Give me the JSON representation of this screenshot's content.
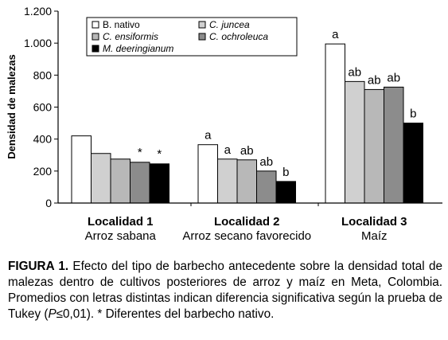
{
  "chart_data": {
    "type": "bar",
    "ylabel": "Densidad de malezas",
    "ylim": [
      0,
      1200
    ],
    "yticks": [
      {
        "value": 0,
        "label": "0"
      },
      {
        "value": 200,
        "label": "200"
      },
      {
        "value": 400,
        "label": "400"
      },
      {
        "value": 600,
        "label": "600"
      },
      {
        "value": 800,
        "label": "800"
      },
      {
        "value": 1000,
        "label": "1.000"
      },
      {
        "value": 1200,
        "label": "1.200"
      }
    ],
    "groups": [
      {
        "name": "Localidad 1",
        "subtitle": "Arroz sabana"
      },
      {
        "name": "Localidad 2",
        "subtitle": "Arroz secano favorecido"
      },
      {
        "name": "Localidad 3",
        "subtitle": "Maíz"
      }
    ],
    "series": [
      {
        "name": "B. nativo",
        "color": "#ffffff",
        "values": [
          420,
          365,
          995
        ],
        "labels": [
          "",
          "a",
          "a"
        ]
      },
      {
        "name": "C. juncea",
        "color": "#d0d0d0",
        "values": [
          310,
          275,
          760
        ],
        "labels": [
          "",
          "a",
          "ab"
        ]
      },
      {
        "name": "C. ensiformis",
        "color": "#b8b8b8",
        "values": [
          275,
          270,
          710
        ],
        "labels": [
          "",
          "ab",
          "ab"
        ]
      },
      {
        "name": "C. ochroleuca",
        "color": "#8c8c8c",
        "values": [
          255,
          200,
          725
        ],
        "labels": [
          "*",
          "ab",
          "ab"
        ]
      },
      {
        "name": "M. deeringianum",
        "color": "#000000",
        "values": [
          245,
          135,
          500
        ],
        "labels": [
          "*",
          "b",
          "b"
        ]
      }
    ],
    "legend_position": "top-left",
    "legend_italic_genus": [
      "B.",
      "C.",
      "C.",
      "C.",
      "M."
    ]
  },
  "caption": {
    "label": "FIGURA 1.",
    "text_before_p": " Efecto del tipo de barbecho antecedente sobre la densidad total de malezas dentro de cultivos posteriores de arroz y maíz en Meta, Colombia. Promedios con letras distintas indican diferencia significativa según la prueba de Tukey (",
    "p_symbol": "P",
    "text_after_p": "≤0,01). * Diferentes del barbecho nativo."
  }
}
